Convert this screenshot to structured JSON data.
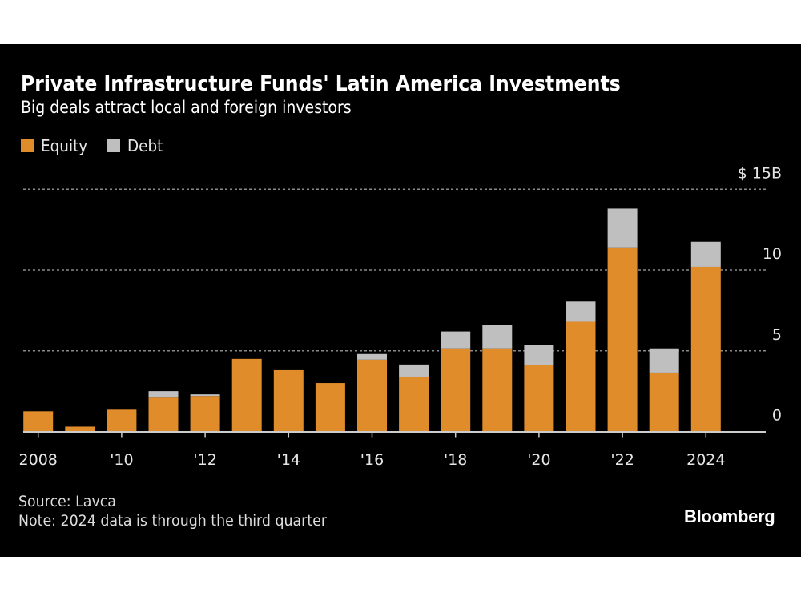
{
  "chart_data": {
    "type": "bar",
    "stacked": true,
    "title": "Private Infrastructure Funds' Latin America Investments",
    "subtitle": "Big deals attract local and foreign investors",
    "xlabel": "",
    "ylabel": "",
    "y_unit_label": "$ 15B",
    "ylim": [
      0,
      15
    ],
    "yticks": [
      0,
      5,
      10,
      15
    ],
    "ytick_labels": [
      "0",
      "5",
      "10",
      "$ 15B"
    ],
    "grid": true,
    "legend_position": "top-left",
    "categories": [
      "2008",
      "2009",
      "2010",
      "2011",
      "2012",
      "2013",
      "2014",
      "2015",
      "2016",
      "2017",
      "2018",
      "2019",
      "2020",
      "2021",
      "2022",
      "2023",
      "2024"
    ],
    "xtick_labels": [
      {
        "category": "2008",
        "label": "2008"
      },
      {
        "category": "2010",
        "label": "'10"
      },
      {
        "category": "2012",
        "label": "'12"
      },
      {
        "category": "2014",
        "label": "'14"
      },
      {
        "category": "2016",
        "label": "'16"
      },
      {
        "category": "2018",
        "label": "'18"
      },
      {
        "category": "2020",
        "label": "'20"
      },
      {
        "category": "2022",
        "label": "'22"
      },
      {
        "category": "2024",
        "label": "2024"
      }
    ],
    "series": [
      {
        "name": "Equity",
        "color": "#E08C2B",
        "values": [
          1.25,
          0.3,
          1.35,
          2.1,
          2.2,
          4.5,
          3.8,
          3.0,
          4.45,
          3.4,
          5.15,
          5.15,
          4.1,
          6.8,
          11.4,
          3.65,
          10.2
        ]
      },
      {
        "name": "Debt",
        "color": "#BFBFBF",
        "values": [
          0,
          0,
          0,
          0.4,
          0.1,
          0,
          0,
          0,
          0.35,
          0.75,
          1.05,
          1.45,
          1.25,
          1.25,
          2.4,
          1.5,
          1.55
        ]
      }
    ]
  },
  "footer": {
    "source": "Source: Lavca",
    "note": "Note: 2024 data is through the third quarter",
    "brand": "Bloomberg"
  },
  "colors": {
    "background": "#000000",
    "gridline": "#8a8a8a",
    "axis": "#cccccc"
  }
}
